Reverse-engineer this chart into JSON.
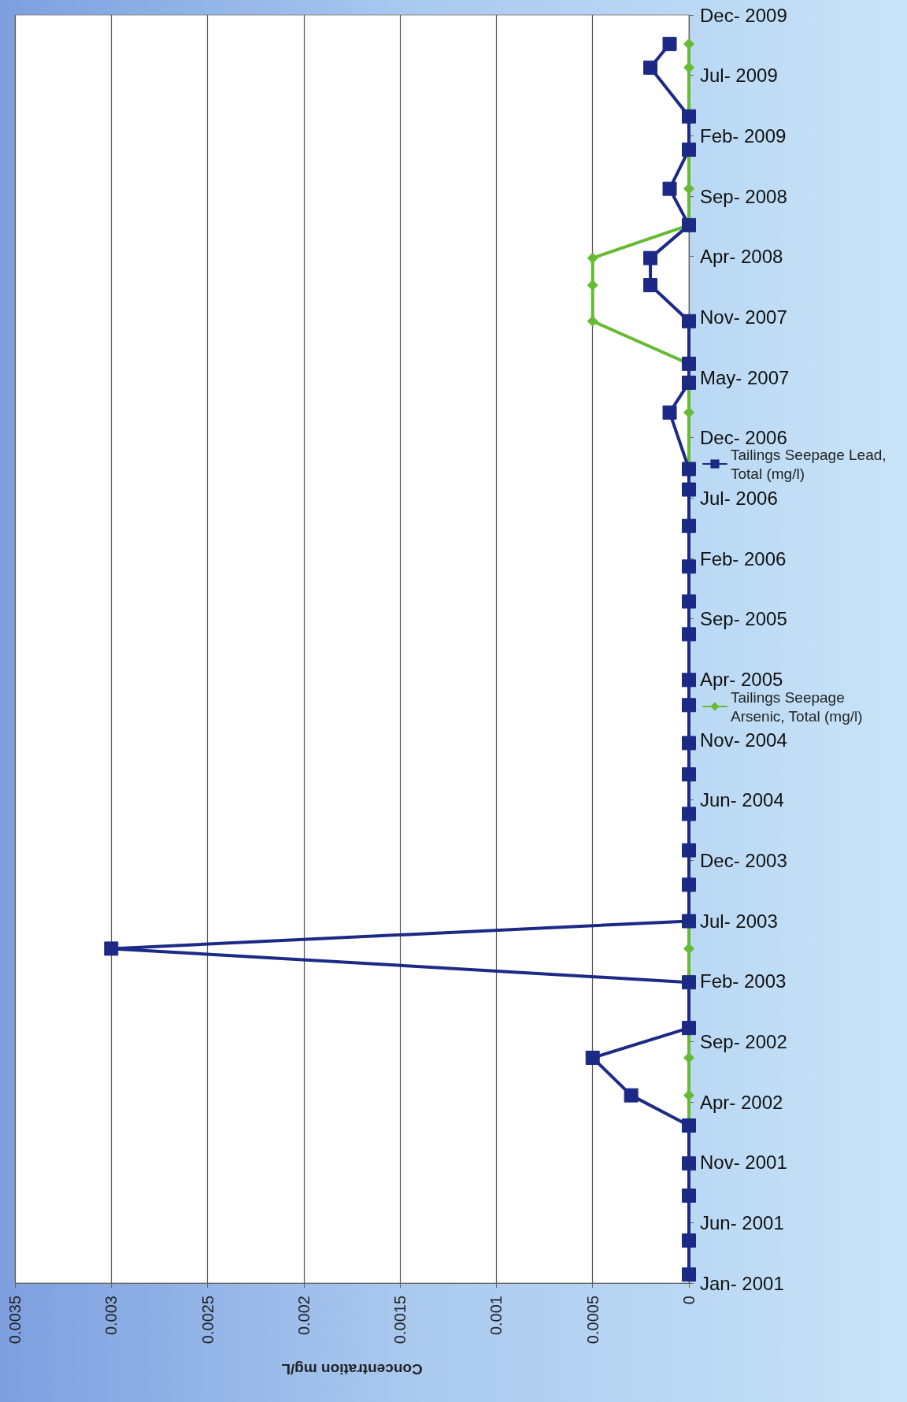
{
  "chart_data": {
    "type": "line",
    "orientation": "horizontal",
    "xlabel": "Concentration mg/L",
    "xlim": [
      0.0035,
      0
    ],
    "xticks": [
      0,
      0.0005,
      0.001,
      0.0015,
      0.002,
      0.0025,
      0.003,
      0.0035
    ],
    "ylim": [
      "2001-01-01",
      "2009-12-21"
    ],
    "yticks": [
      {
        "value": "2001-01-01",
        "label": "Jan- 2001"
      },
      {
        "value": "2001-06-06",
        "label": "Jun- 2001"
      },
      {
        "value": "2001-11-09",
        "label": "Nov- 2001"
      },
      {
        "value": "2002-04-14",
        "label": "Apr- 2002"
      },
      {
        "value": "2002-09-17",
        "label": "Sep- 2002"
      },
      {
        "value": "2003-02-20",
        "label": "Feb- 2003"
      },
      {
        "value": "2003-07-26",
        "label": "Jul- 2003"
      },
      {
        "value": "2003-12-29",
        "label": "Dec- 2003"
      },
      {
        "value": "2004-06-02",
        "label": "Jun- 2004"
      },
      {
        "value": "2004-11-05",
        "label": "Nov- 2004"
      },
      {
        "value": "2005-04-10",
        "label": "Apr- 2005"
      },
      {
        "value": "2005-09-13",
        "label": "Sep- 2005"
      },
      {
        "value": "2006-02-16",
        "label": "Feb- 2006"
      },
      {
        "value": "2006-07-22",
        "label": "Jul- 2006"
      },
      {
        "value": "2006-12-25",
        "label": "Dec- 2006"
      },
      {
        "value": "2007-05-30",
        "label": "May- 2007"
      },
      {
        "value": "2007-11-02",
        "label": "Nov- 2007"
      },
      {
        "value": "2008-04-06",
        "label": "Apr- 2008"
      },
      {
        "value": "2008-09-09",
        "label": "Sep- 2008"
      },
      {
        "value": "2009-02-12",
        "label": "Feb- 2009"
      },
      {
        "value": "2009-07-18",
        "label": "Jul- 2009"
      },
      {
        "value": "2009-12-21",
        "label": "Dec- 2009"
      }
    ],
    "grid": "x",
    "legend": "right",
    "line_style": "solid",
    "series": [
      {
        "name": "Tailings Seepage Arsenic, Total (mg/l)",
        "color": "#66bb33",
        "marker": "diamond",
        "x": [
          "2002-02-12",
          "2002-05-01",
          "2002-08-06",
          "2003-05-15",
          "2007-02-28",
          "2007-07-04",
          "2007-10-22",
          "2008-01-23",
          "2008-04-02",
          "2008-06-26",
          "2008-09-28",
          "2009-08-07",
          "2009-10-07"
        ],
        "values": [
          0,
          0,
          0,
          0,
          0,
          0,
          0.0005,
          0.0005,
          0.0005,
          0,
          0,
          0,
          0
        ]
      },
      {
        "name": "Tailings Seepage Lead, Total (mg/l)",
        "color": "#1c2a86",
        "marker": "square",
        "x": [
          "2001-01-23",
          "2001-04-21",
          "2001-08-15",
          "2001-11-06",
          "2002-02-12",
          "2002-05-01",
          "2002-08-06",
          "2002-10-22",
          "2003-02-17",
          "2003-05-15",
          "2003-07-25",
          "2003-10-27",
          "2004-01-24",
          "2004-04-27",
          "2004-08-07",
          "2004-10-27",
          "2005-02-02",
          "2005-04-08",
          "2005-08-04",
          "2005-10-28",
          "2006-01-26",
          "2006-05-11",
          "2006-08-13",
          "2006-10-05",
          "2007-02-28",
          "2007-05-16",
          "2007-07-04",
          "2007-10-22",
          "2008-01-23",
          "2008-04-02",
          "2008-06-26",
          "2008-09-28",
          "2009-01-07",
          "2009-04-03",
          "2009-08-07",
          "2009-10-07"
        ],
        "values": [
          0,
          0,
          0,
          0,
          0,
          0.0003,
          0.0005,
          0,
          0,
          0.003,
          0,
          0,
          0,
          0,
          0,
          0,
          0,
          0,
          0,
          0,
          0,
          0,
          0,
          0,
          0.0001,
          0,
          0,
          0,
          0.0002,
          0.0002,
          0,
          0.0001,
          0,
          0,
          0.0002,
          0.0001
        ]
      }
    ]
  }
}
